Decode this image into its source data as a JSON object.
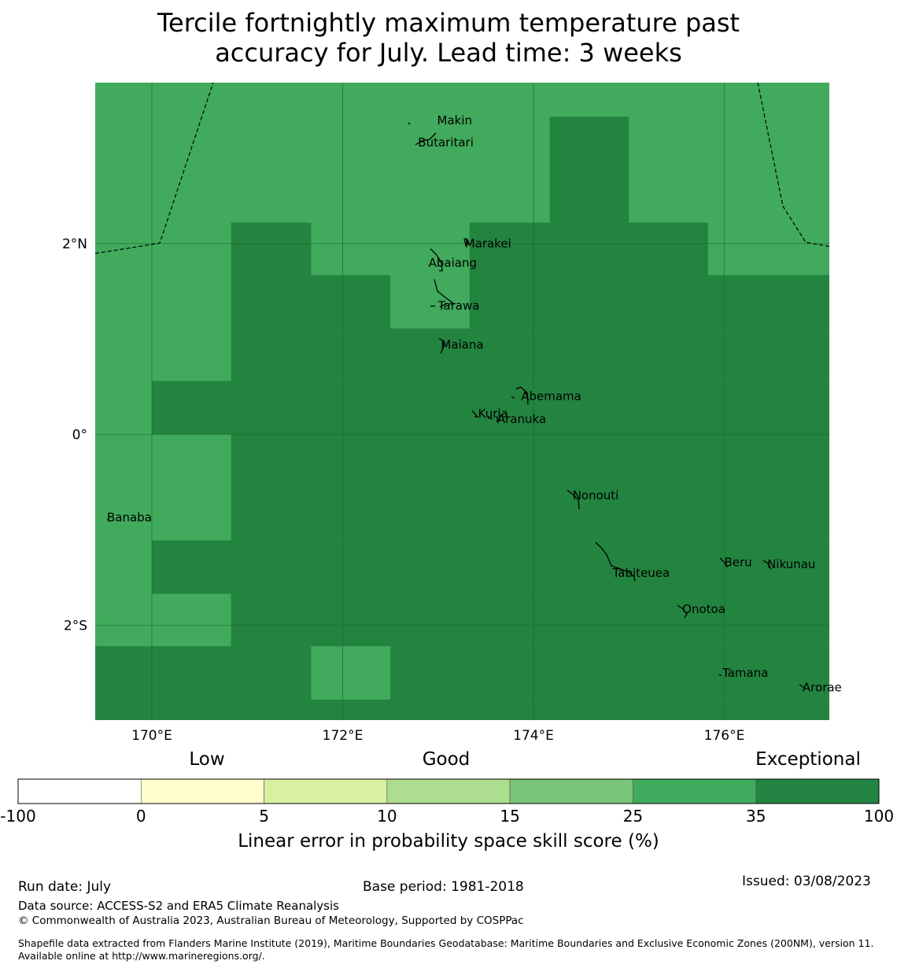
{
  "title_line1": "Tercile fortnightly maximum temperature past",
  "title_line2": "accuracy for July. Lead time: 3 weeks",
  "map": {
    "lon_range": [
      169.4,
      177.1
    ],
    "lat_range": [
      -3.0,
      3.7
    ],
    "lon_ticks": [
      {
        "value": 170,
        "label": "170°E"
      },
      {
        "value": 172,
        "label": "172°E"
      },
      {
        "value": 174,
        "label": "174°E"
      },
      {
        "value": 176,
        "label": "176°E"
      }
    ],
    "lat_ticks": [
      {
        "value": 2,
        "label": "2°N"
      },
      {
        "value": 0,
        "label": "0°"
      },
      {
        "value": -2,
        "label": "2°S"
      }
    ],
    "colors": {
      "skill_25_35": "#41aa5c",
      "skill_35_100": "#23843f",
      "gridline": "#1b5e2e",
      "boundary": "#000000"
    },
    "exceptional_cells_note": "cells with skill 35-100",
    "exceptional_cells": [
      {
        "lon": [
          174.17,
          175.0
        ],
        "lat": [
          2.22,
          3.33
        ]
      },
      {
        "lon": [
          170.83,
          171.67
        ],
        "lat": [
          1.67,
          2.22
        ]
      },
      {
        "lon": [
          173.33,
          175.83
        ],
        "lat": [
          1.67,
          2.22
        ]
      },
      {
        "lon": [
          170.83,
          172.5
        ],
        "lat": [
          1.11,
          1.67
        ]
      },
      {
        "lon": [
          173.33,
          177.1
        ],
        "lat": [
          1.11,
          1.67
        ]
      },
      {
        "lon": [
          170.83,
          177.1
        ],
        "lat": [
          0.56,
          1.11
        ]
      },
      {
        "lon": [
          170.0,
          177.1
        ],
        "lat": [
          0.0,
          0.56
        ]
      },
      {
        "lon": [
          170.83,
          177.1
        ],
        "lat": [
          -1.11,
          0.0
        ]
      },
      {
        "lon": [
          170.0,
          177.1
        ],
        "lat": [
          -1.67,
          -1.11
        ]
      },
      {
        "lon": [
          170.83,
          177.1
        ],
        "lat": [
          -2.22,
          -1.67
        ]
      },
      {
        "lon": [
          169.4,
          171.67
        ],
        "lat": [
          -2.78,
          -2.22
        ]
      },
      {
        "lon": [
          172.5,
          177.1
        ],
        "lat": [
          -2.78,
          -2.22
        ]
      },
      {
        "lon": [
          169.4,
          177.1
        ],
        "lat": [
          -3.0,
          -2.78
        ]
      }
    ],
    "islands": [
      {
        "name": "Makin",
        "lon": 172.99,
        "lat": 3.29
      },
      {
        "name": "Butaritari",
        "lon": 172.79,
        "lat": 3.06
      },
      {
        "name": "Marakei",
        "lon": 173.28,
        "lat": 2.0
      },
      {
        "name": "Abaiang",
        "lon": 172.9,
        "lat": 1.8
      },
      {
        "name": "Tarawa",
        "lon": 173.0,
        "lat": 1.35
      },
      {
        "name": "Maiana",
        "lon": 173.03,
        "lat": 0.94
      },
      {
        "name": "Abemama",
        "lon": 173.87,
        "lat": 0.4
      },
      {
        "name": "Kuria",
        "lon": 173.42,
        "lat": 0.22
      },
      {
        "name": "Aranuka",
        "lon": 173.62,
        "lat": 0.16
      },
      {
        "name": "Nonouti",
        "lon": 174.41,
        "lat": -0.64
      },
      {
        "name": "Banaba",
        "lon": 169.53,
        "lat": -0.87
      },
      {
        "name": "Beru",
        "lon": 176.0,
        "lat": -1.34
      },
      {
        "name": "Tabiteuea",
        "lon": 174.83,
        "lat": -1.45
      },
      {
        "name": "Nikunau",
        "lon": 176.45,
        "lat": -1.36
      },
      {
        "name": "Onotoa",
        "lon": 175.56,
        "lat": -1.83
      },
      {
        "name": "Tamana",
        "lon": 175.98,
        "lat": -2.5
      },
      {
        "name": "Arorae",
        "lon": 176.82,
        "lat": -2.65
      }
    ]
  },
  "legend": {
    "category_low": "Low",
    "category_good": "Good",
    "category_exceptional": "Exceptional",
    "bins": [
      {
        "from": -100,
        "to": 0,
        "color": "#ffffff"
      },
      {
        "from": 0,
        "to": 5,
        "color": "#ffffcc"
      },
      {
        "from": 5,
        "to": 10,
        "color": "#d9f0a3"
      },
      {
        "from": 10,
        "to": 15,
        "color": "#addd8e"
      },
      {
        "from": 15,
        "to": 25,
        "color": "#78c679"
      },
      {
        "from": 25,
        "to": 35,
        "color": "#41ab5d"
      },
      {
        "from": 35,
        "to": 100,
        "color": "#238443"
      }
    ],
    "tick_labels": [
      "-100",
      "0",
      "5",
      "10",
      "15",
      "25",
      "35",
      "100"
    ],
    "axis_label": "Linear error in probability space skill score (%)"
  },
  "footer": {
    "run_date": "Run date: July",
    "base_period": "Base period: 1981-2018",
    "issued": "Issued: 03/08/2023",
    "data_source": "Data source: ACCESS-S2 and ERA5 Climate Reanalysis",
    "copyright": "© Commonwealth of Australia 2023, Australian Bureau of Meteorology, Supported by COSPPac",
    "shapefile": "Shapefile data extracted from Flanders Marine Institute (2019), Maritime Boundaries Geodatabase: Maritime Boundaries and Exclusive Economic Zones (200NM), version 11. Available online at http://www.marineregions.org/."
  }
}
